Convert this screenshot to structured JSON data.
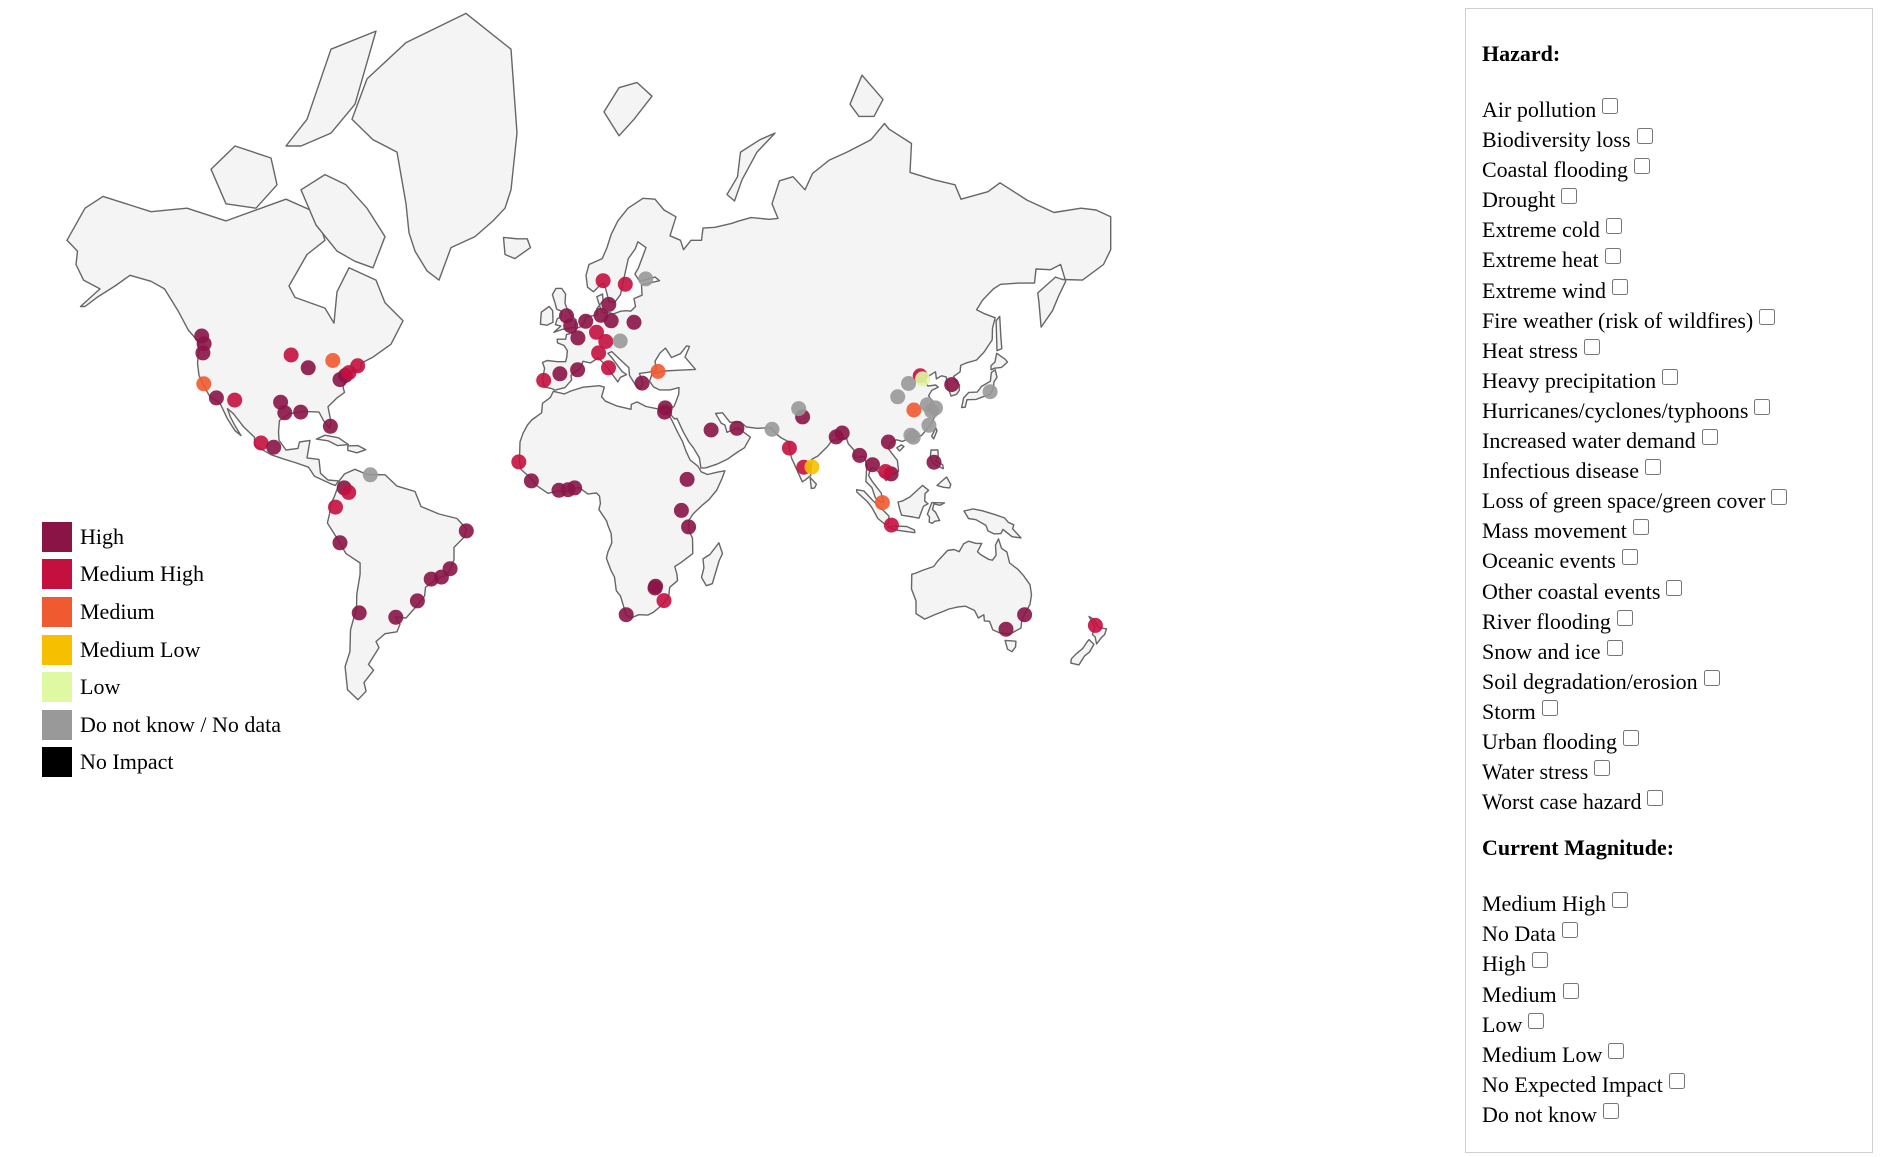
{
  "legend": {
    "items": [
      {
        "label": "High",
        "color": "#8a1446"
      },
      {
        "label": "Medium High",
        "color": "#c4103f"
      },
      {
        "label": "Medium",
        "color": "#f05a30"
      },
      {
        "label": "Medium Low",
        "color": "#f6c000"
      },
      {
        "label": "Low",
        "color": "#def9a2"
      },
      {
        "label": "Do not know / No data",
        "color": "#999999"
      },
      {
        "label": "No Impact",
        "color": "#000000"
      }
    ]
  },
  "filters": {
    "hazard_heading": "Hazard:",
    "hazards": [
      {
        "label": "Air pollution",
        "checked": false
      },
      {
        "label": "Biodiversity loss",
        "checked": false
      },
      {
        "label": "Coastal flooding",
        "checked": false
      },
      {
        "label": "Drought",
        "checked": false
      },
      {
        "label": "Extreme cold",
        "checked": false
      },
      {
        "label": "Extreme heat",
        "checked": false
      },
      {
        "label": "Extreme wind",
        "checked": false
      },
      {
        "label": "Fire weather (risk of wildfires)",
        "checked": false
      },
      {
        "label": "Heat stress",
        "checked": false
      },
      {
        "label": "Heavy precipitation",
        "checked": false
      },
      {
        "label": "Hurricanes/cyclones/typhoons",
        "checked": false
      },
      {
        "label": "Increased water demand",
        "checked": false
      },
      {
        "label": "Infectious disease",
        "checked": false
      },
      {
        "label": "Loss of green space/green cover",
        "checked": false
      },
      {
        "label": "Mass movement",
        "checked": false
      },
      {
        "label": "Oceanic events",
        "checked": false
      },
      {
        "label": "Other coastal events",
        "checked": false
      },
      {
        "label": "River flooding",
        "checked": false
      },
      {
        "label": "Snow and ice",
        "checked": false
      },
      {
        "label": "Soil degradation/erosion",
        "checked": false
      },
      {
        "label": "Storm",
        "checked": false
      },
      {
        "label": "Urban flooding",
        "checked": false
      },
      {
        "label": "Water stress",
        "checked": false
      },
      {
        "label": "Worst case hazard",
        "checked": false
      }
    ],
    "magnitude_heading": "Current Magnitude:",
    "magnitudes": [
      {
        "label": "Medium High",
        "checked": false
      },
      {
        "label": "No Data",
        "checked": false
      },
      {
        "label": "High",
        "checked": false
      },
      {
        "label": "Medium",
        "checked": false
      },
      {
        "label": "Low",
        "checked": false
      },
      {
        "label": "Medium Low",
        "checked": false
      },
      {
        "label": "No Expected Impact",
        "checked": false
      },
      {
        "label": "Do not know",
        "checked": false
      }
    ]
  },
  "map_data": {
    "projection": "mercator",
    "cities": [
      {
        "lon": -123.1,
        "lat": 49.3,
        "level": "High"
      },
      {
        "lon": -122.7,
        "lat": 45.5,
        "level": "High"
      },
      {
        "lon": -122.3,
        "lat": 47.6,
        "level": "High"
      },
      {
        "lon": -122.4,
        "lat": 37.8,
        "level": "Medium"
      },
      {
        "lon": -118.2,
        "lat": 34.0,
        "level": "High"
      },
      {
        "lon": -112.1,
        "lat": 33.4,
        "level": "Medium High"
      },
      {
        "lon": -93.3,
        "lat": 45.0,
        "level": "Medium High"
      },
      {
        "lon": -87.6,
        "lat": 41.9,
        "level": "High"
      },
      {
        "lon": -79.4,
        "lat": 43.7,
        "level": "Medium"
      },
      {
        "lon": -77.0,
        "lat": 38.9,
        "level": "High"
      },
      {
        "lon": -75.2,
        "lat": 40.0,
        "level": "High"
      },
      {
        "lon": -74.0,
        "lat": 40.7,
        "level": "Medium High"
      },
      {
        "lon": -71.1,
        "lat": 42.4,
        "level": "Medium High"
      },
      {
        "lon": -96.8,
        "lat": 32.8,
        "level": "High"
      },
      {
        "lon": -95.4,
        "lat": 29.8,
        "level": "High"
      },
      {
        "lon": -90.1,
        "lat": 30.0,
        "level": "High"
      },
      {
        "lon": -80.2,
        "lat": 25.8,
        "level": "High"
      },
      {
        "lon": -103.3,
        "lat": 20.7,
        "level": "Medium High"
      },
      {
        "lon": -99.1,
        "lat": 19.4,
        "level": "High"
      },
      {
        "lon": -75.6,
        "lat": 6.2,
        "level": "High"
      },
      {
        "lon": -74.1,
        "lat": 4.7,
        "level": "Medium High"
      },
      {
        "lon": -66.9,
        "lat": 10.5,
        "level": "Do not know / No data"
      },
      {
        "lon": -78.5,
        "lat": -0.2,
        "level": "Medium High"
      },
      {
        "lon": -77.0,
        "lat": -12.0,
        "level": "High"
      },
      {
        "lon": -70.6,
        "lat": -33.4,
        "level": "High"
      },
      {
        "lon": -58.4,
        "lat": -34.6,
        "level": "High"
      },
      {
        "lon": -51.2,
        "lat": -30.0,
        "level": "High"
      },
      {
        "lon": -46.6,
        "lat": -23.5,
        "level": "High"
      },
      {
        "lon": -43.2,
        "lat": -22.9,
        "level": "High"
      },
      {
        "lon": -40.3,
        "lat": -20.3,
        "level": "High"
      },
      {
        "lon": -34.9,
        "lat": -8.1,
        "level": "High"
      },
      {
        "lon": -17.4,
        "lat": 14.7,
        "level": "Medium High"
      },
      {
        "lon": -13.2,
        "lat": 8.5,
        "level": "High"
      },
      {
        "lon": -4.0,
        "lat": 5.4,
        "level": "High"
      },
      {
        "lon": -1.0,
        "lat": 5.6,
        "level": "High"
      },
      {
        "lon": 1.2,
        "lat": 6.2,
        "level": "High"
      },
      {
        "lon": -9.1,
        "lat": 38.7,
        "level": "Medium High"
      },
      {
        "lon": -3.7,
        "lat": 40.4,
        "level": "High"
      },
      {
        "lon": 2.2,
        "lat": 41.4,
        "level": "High"
      },
      {
        "lon": -0.1,
        "lat": 51.5,
        "level": "High"
      },
      {
        "lon": -1.5,
        "lat": 53.5,
        "level": "High"
      },
      {
        "lon": 4.9,
        "lat": 52.4,
        "level": "High"
      },
      {
        "lon": 2.3,
        "lat": 48.9,
        "level": "High"
      },
      {
        "lon": 10.0,
        "lat": 53.6,
        "level": "High"
      },
      {
        "lon": 13.4,
        "lat": 52.5,
        "level": "High"
      },
      {
        "lon": 12.6,
        "lat": 55.7,
        "level": "High"
      },
      {
        "lon": 10.7,
        "lat": 59.9,
        "level": "Medium High"
      },
      {
        "lon": 18.1,
        "lat": 59.3,
        "level": "Medium High"
      },
      {
        "lon": 24.9,
        "lat": 60.2,
        "level": "Do not know / No data"
      },
      {
        "lon": 21.0,
        "lat": 52.2,
        "level": "High"
      },
      {
        "lon": 8.5,
        "lat": 50.1,
        "level": "Medium High"
      },
      {
        "lon": 11.6,
        "lat": 48.1,
        "level": "Medium High"
      },
      {
        "lon": 9.2,
        "lat": 45.5,
        "level": "Medium High"
      },
      {
        "lon": 12.5,
        "lat": 41.9,
        "level": "Medium High"
      },
      {
        "lon": 16.4,
        "lat": 48.2,
        "level": "Do not know / No data"
      },
      {
        "lon": 23.7,
        "lat": 38.0,
        "level": "High"
      },
      {
        "lon": 29.0,
        "lat": 41.0,
        "level": "Medium"
      },
      {
        "lon": 31.2,
        "lat": 30.0,
        "level": "High"
      },
      {
        "lon": 31.4,
        "lat": 31.2,
        "level": "High"
      },
      {
        "lon": 38.7,
        "lat": 9.0,
        "level": "High"
      },
      {
        "lon": 36.8,
        "lat": -1.3,
        "level": "High"
      },
      {
        "lon": 39.2,
        "lat": -6.8,
        "level": "High"
      },
      {
        "lon": 28.0,
        "lat": -26.2,
        "level": "High"
      },
      {
        "lon": 28.2,
        "lat": -25.7,
        "level": "High"
      },
      {
        "lon": 31.0,
        "lat": -29.9,
        "level": "Medium High"
      },
      {
        "lon": 18.4,
        "lat": -33.9,
        "level": "High"
      },
      {
        "lon": 46.7,
        "lat": 24.7,
        "level": "High"
      },
      {
        "lon": 55.3,
        "lat": 25.2,
        "level": "High"
      },
      {
        "lon": 67.0,
        "lat": 24.9,
        "level": "Do not know / No data"
      },
      {
        "lon": 72.8,
        "lat": 19.1,
        "level": "Medium High"
      },
      {
        "lon": 77.2,
        "lat": 28.6,
        "level": "High"
      },
      {
        "lon": 75.9,
        "lat": 31.0,
        "level": "Do not know / No data"
      },
      {
        "lon": 77.6,
        "lat": 13.0,
        "level": "Medium High"
      },
      {
        "lon": 80.3,
        "lat": 13.1,
        "level": "Medium Low"
      },
      {
        "lon": 88.4,
        "lat": 22.6,
        "level": "High"
      },
      {
        "lon": 90.4,
        "lat": 23.8,
        "level": "High"
      },
      {
        "lon": 100.5,
        "lat": 13.8,
        "level": "High"
      },
      {
        "lon": 96.2,
        "lat": 16.8,
        "level": "High"
      },
      {
        "lon": 103.8,
        "lat": 1.3,
        "level": "Medium"
      },
      {
        "lon": 105.8,
        "lat": 21.0,
        "level": "High"
      },
      {
        "lon": 106.7,
        "lat": 10.8,
        "level": "High"
      },
      {
        "lon": 104.9,
        "lat": 11.6,
        "level": "Medium High"
      },
      {
        "lon": 106.8,
        "lat": -6.2,
        "level": "Medium High"
      },
      {
        "lon": 121.0,
        "lat": 14.6,
        "level": "High"
      },
      {
        "lon": 116.4,
        "lat": 39.9,
        "level": "Medium High"
      },
      {
        "lon": 117.2,
        "lat": 39.1,
        "level": "Low"
      },
      {
        "lon": 112.5,
        "lat": 37.9,
        "level": "Do not know / No data"
      },
      {
        "lon": 108.9,
        "lat": 34.3,
        "level": "Do not know / No data"
      },
      {
        "lon": 114.3,
        "lat": 30.6,
        "level": "Medium"
      },
      {
        "lon": 118.8,
        "lat": 32.1,
        "level": "Do not know / No data"
      },
      {
        "lon": 120.2,
        "lat": 30.3,
        "level": "Do not know / No data"
      },
      {
        "lon": 121.5,
        "lat": 31.2,
        "level": "Do not know / No data"
      },
      {
        "lon": 119.3,
        "lat": 26.1,
        "level": "Do not know / No data"
      },
      {
        "lon": 113.3,
        "lat": 23.1,
        "level": "Do not know / No data"
      },
      {
        "lon": 114.1,
        "lat": 22.5,
        "level": "Do not know / No data"
      },
      {
        "lon": 126.9,
        "lat": 37.6,
        "level": "High"
      },
      {
        "lon": 139.7,
        "lat": 35.7,
        "level": "Do not know / No data"
      },
      {
        "lon": 151.2,
        "lat": -33.9,
        "level": "High"
      },
      {
        "lon": 145.0,
        "lat": -37.8,
        "level": "High"
      },
      {
        "lon": 174.8,
        "lat": -36.8,
        "level": "Medium High"
      }
    ]
  }
}
